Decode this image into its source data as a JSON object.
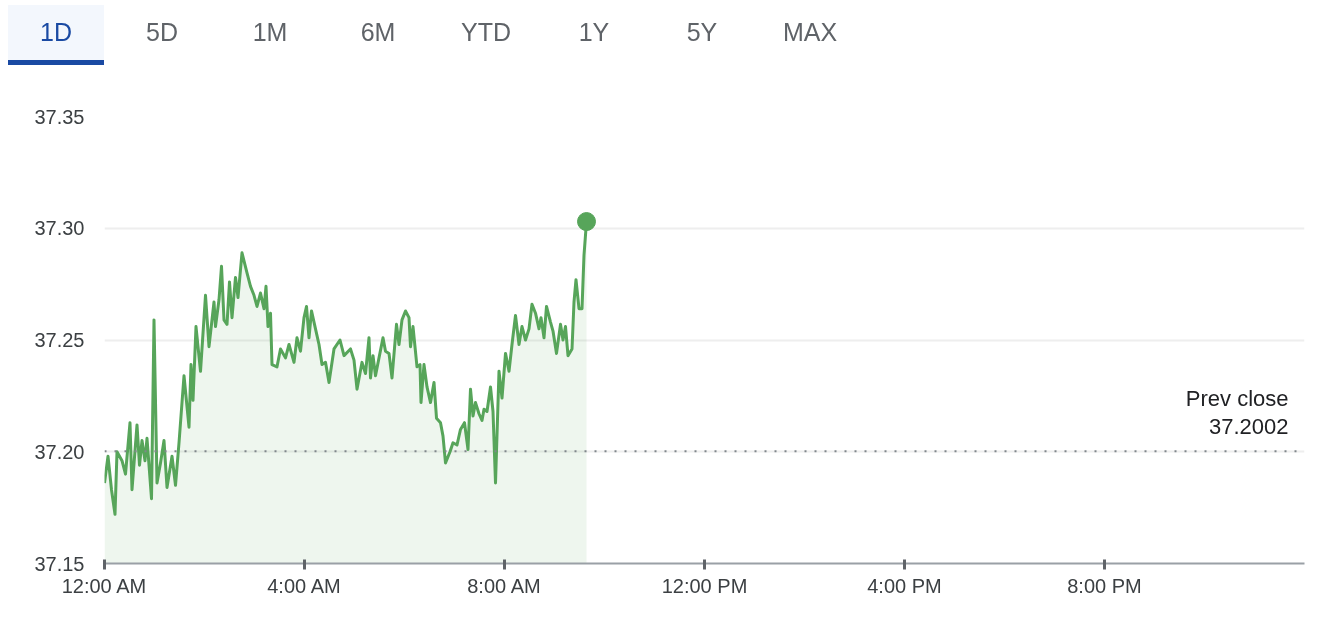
{
  "chart_data": {
    "type": "area",
    "annotations": [
      "1D",
      "5D",
      "1M",
      "6M",
      "YTD",
      "1Y",
      "5Y",
      "MAX"
    ],
    "series": [
      {
        "color": "#57a55a",
        "x": [
          0,
          0.07,
          0.14,
          0.21,
          0.25,
          0.35,
          0.42,
          0.51,
          0.55,
          0.65,
          0.7,
          0.75,
          0.81,
          0.85,
          0.94,
          0.99,
          1.05,
          1.12,
          1.19,
          1.25,
          1.35,
          1.42,
          1.49,
          1.59,
          1.69,
          1.73,
          1.77,
          1.83,
          1.92,
          2.02,
          2.09,
          2.19,
          2.22,
          2.29,
          2.34,
          2.39,
          2.45,
          2.5,
          2.55,
          2.62,
          2.67,
          2.75,
          2.85,
          2.92,
          2.99,
          3.05,
          3.12,
          3.19,
          3.23,
          3.27,
          3.32,
          3.35,
          3.45,
          3.52,
          3.62,
          3.69,
          3.79,
          3.85,
          3.92,
          3.99,
          4.04,
          4.09,
          4.14,
          4.22,
          4.29,
          4.35,
          4.42,
          4.49,
          4.59,
          4.71,
          4.79,
          4.92,
          4.99,
          5.05,
          5.15,
          5.22,
          5.29,
          5.32,
          5.37,
          5.42,
          5.49,
          5.57,
          5.62,
          5.69,
          5.75,
          5.84,
          5.89,
          5.95,
          6.02,
          6.09,
          6.12,
          6.17,
          6.25,
          6.31,
          6.33,
          6.39,
          6.45,
          6.52,
          6.59,
          6.64,
          6.72,
          6.77,
          6.82,
          6.91,
          6.97,
          7.05,
          7.12,
          7.2,
          7.27,
          7.32,
          7.37,
          7.42,
          7.49,
          7.55,
          7.59,
          7.65,
          7.72,
          7.77,
          7.82,
          7.89,
          7.95,
          8.02,
          8.09,
          8.15,
          8.22,
          8.29,
          8.35,
          8.42,
          8.49,
          8.55,
          8.62,
          8.69,
          8.73,
          8.79,
          8.84,
          8.92,
          8.97,
          9.04,
          9.12,
          9.17,
          9.22,
          9.27,
          9.35,
          9.39,
          9.43,
          9.49,
          9.55,
          9.59,
          9.64
        ],
        "values": [
          37.186,
          37.198,
          37.183,
          37.172,
          37.2,
          37.196,
          37.19,
          37.213,
          37.183,
          37.212,
          37.194,
          37.205,
          37.196,
          37.206,
          37.179,
          37.259,
          37.186,
          37.195,
          37.205,
          37.184,
          37.198,
          37.185,
          37.204,
          37.234,
          37.211,
          37.239,
          37.223,
          37.256,
          37.236,
          37.27,
          37.247,
          37.267,
          37.256,
          37.268,
          37.283,
          37.259,
          37.257,
          37.276,
          37.26,
          37.278,
          37.269,
          37.289,
          37.28,
          37.274,
          37.27,
          37.265,
          37.271,
          37.264,
          37.274,
          37.256,
          37.262,
          37.239,
          37.238,
          37.246,
          37.242,
          37.248,
          37.24,
          37.251,
          37.245,
          37.26,
          37.265,
          37.251,
          37.263,
          37.255,
          37.248,
          37.239,
          37.24,
          37.231,
          37.246,
          37.25,
          37.243,
          37.246,
          37.241,
          37.228,
          37.24,
          37.235,
          37.251,
          37.233,
          37.243,
          37.234,
          37.242,
          37.251,
          37.245,
          37.244,
          37.233,
          37.257,
          37.248,
          37.259,
          37.263,
          37.26,
          37.247,
          37.256,
          37.238,
          37.239,
          37.222,
          37.239,
          37.229,
          37.222,
          37.231,
          37.215,
          37.213,
          37.207,
          37.195,
          37.2,
          37.204,
          37.203,
          37.21,
          37.213,
          37.201,
          37.228,
          37.216,
          37.222,
          37.217,
          37.214,
          37.219,
          37.218,
          37.229,
          37.218,
          37.186,
          37.236,
          37.224,
          37.244,
          37.236,
          37.248,
          37.261,
          37.248,
          37.256,
          37.25,
          37.255,
          37.266,
          37.262,
          37.255,
          37.26,
          37.251,
          37.265,
          37.258,
          37.254,
          37.244,
          37.257,
          37.25,
          37.256,
          37.243,
          37.246,
          37.267,
          37.277,
          37.264,
          37.264,
          37.288,
          37.303
        ]
      },
      {
        "type": "scatter",
        "color": "#57a55a",
        "x": [
          9.64
        ],
        "values": [
          37.303
        ]
      }
    ],
    "xlim": [
      0,
      24
    ],
    "xticks": [
      {
        "value": 0,
        "label": "12:00 AM"
      },
      {
        "value": 4,
        "label": "4:00 AM"
      },
      {
        "value": 8,
        "label": "8:00 AM"
      },
      {
        "value": 12,
        "label": "12:00 PM"
      },
      {
        "value": 16,
        "label": "4:00 PM"
      },
      {
        "value": 20,
        "label": "8:00 PM"
      }
    ],
    "ylim": [
      37.15,
      37.35
    ],
    "yticks": [
      {
        "value": 37.15,
        "label": "37.15"
      },
      {
        "value": 37.2,
        "label": "37.20"
      },
      {
        "value": 37.25,
        "label": "37.25"
      },
      {
        "value": 37.3,
        "label": "37.30"
      },
      {
        "value": 37.35,
        "label": "37.35"
      }
    ],
    "ref_lines": [
      {
        "axis": "y",
        "value": 37.2002,
        "label": "Prev close\n37.2002",
        "line_style": "dotted",
        "color": "#80868b"
      }
    ],
    "grid": "y"
  }
}
